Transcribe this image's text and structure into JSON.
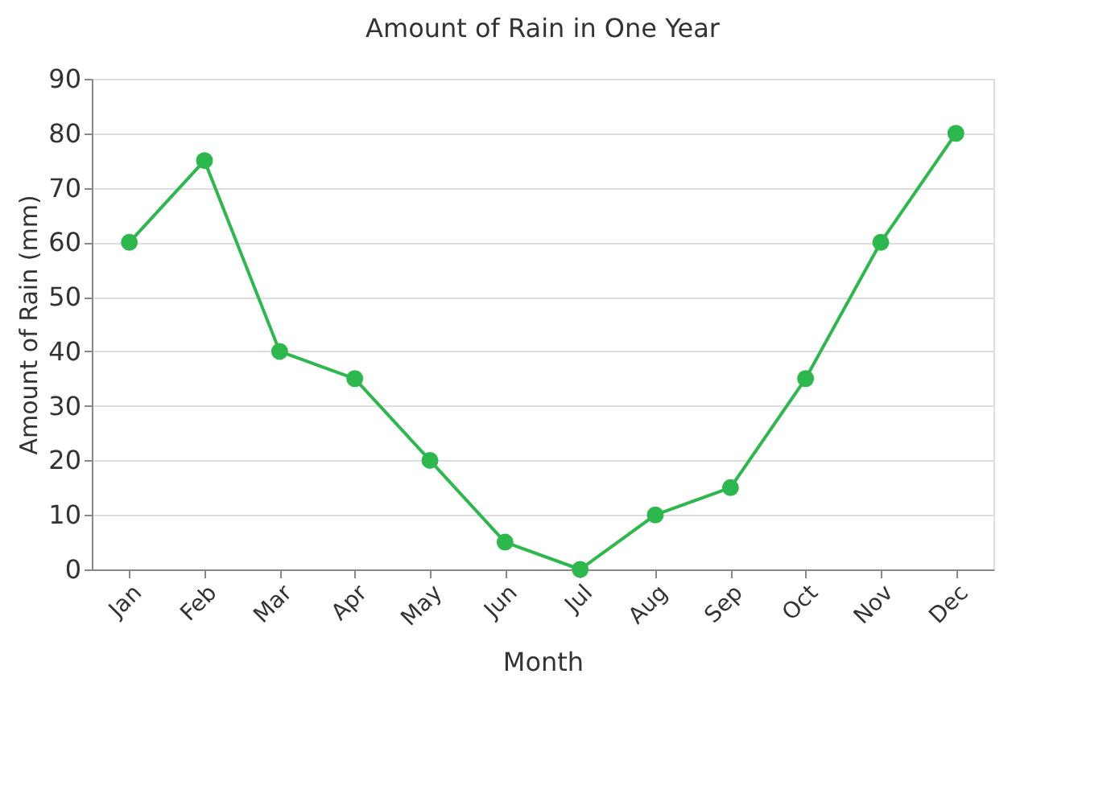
{
  "chart_data": {
    "type": "line",
    "title": "Amount of Rain in One Year",
    "xlabel": "Month",
    "ylabel": "Amount of Rain (mm)",
    "categories": [
      "Jan",
      "Feb",
      "Mar",
      "Apr",
      "May",
      "Jun",
      "Jul",
      "Aug",
      "Sep",
      "Oct",
      "Nov",
      "Dec"
    ],
    "series": [
      {
        "color": "#2db84d",
        "values": [
          60,
          75,
          40,
          35,
          20,
          5,
          0,
          10,
          15,
          35,
          60,
          80
        ]
      }
    ],
    "ylim": [
      0,
      90
    ],
    "yticks": [
      0,
      10,
      20,
      30,
      40,
      50,
      60,
      70,
      80,
      90
    ],
    "grid": "y",
    "marker": "circle",
    "line_style": "solid",
    "legend": false
  }
}
